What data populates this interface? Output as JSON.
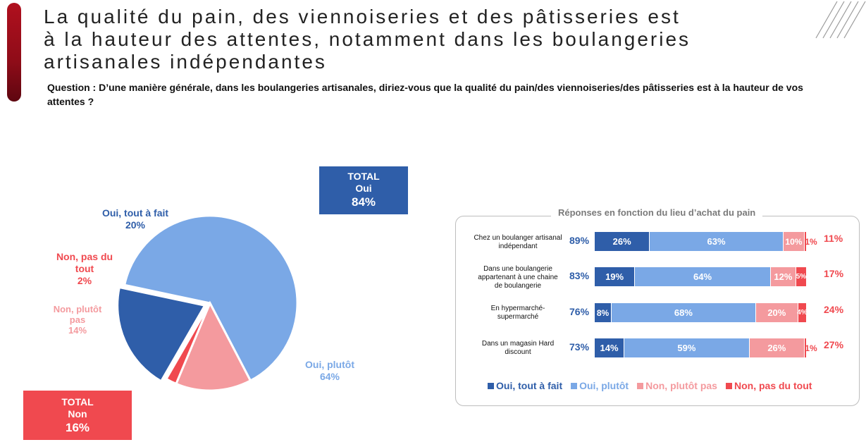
{
  "title_lines": [
    "La qualité du pain, des viennoiseries et des pâtisseries est",
    "à la hauteur des attentes, notamment dans les boulangeries",
    "artisanales indépendantes"
  ],
  "question": "Question : D’une manière générale, dans les boulangeries artisanales, diriez-vous que la qualité du pain/des viennoiseries/des pâtisseries est à la hauteur de vos attentes ?",
  "colors": {
    "oui_tout_a_fait": "#2f5ea9",
    "oui_plutot": "#7aa8e6",
    "non_plutot_pas": "#f49a9e",
    "non_pas_du_tout": "#f0494f"
  },
  "total_oui": {
    "line1": "TOTAL",
    "line2": "Oui",
    "value": "84%"
  },
  "total_non": {
    "line1": "TOTAL",
    "line2": "Non",
    "value": "16%"
  },
  "chart_data": [
    {
      "type": "pie",
      "slices": [
        {
          "name": "Oui, tout à fait",
          "value": 20,
          "label": "20%"
        },
        {
          "name": "Oui, plutôt",
          "value": 64,
          "label": "64%"
        },
        {
          "name": "Non, plutôt pas",
          "value": 14,
          "label": "14%"
        },
        {
          "name": "Non, pas du tout",
          "value": 2,
          "label": "2%"
        }
      ],
      "label_lines": [
        [
          "Oui, tout à fait",
          "20%"
        ],
        [
          "Oui, plutôt",
          "64%"
        ],
        [
          "Non, plutôt",
          "pas",
          "14%"
        ],
        [
          "Non, pas du",
          "tout",
          "2%"
        ]
      ]
    },
    {
      "type": "bar",
      "orientation": "horizontal",
      "stacked": true,
      "title": "Réponses en fonction du lieu d’achat du pain",
      "categories": [
        [
          "Chez un boulanger artisanal",
          "indépendant"
        ],
        [
          "Dans une boulangerie",
          "appartenant à une chaine",
          "de boulangerie"
        ],
        [
          "En hypermarché-",
          "supermarché"
        ],
        [
          "Dans un magasin Hard",
          "discount"
        ]
      ],
      "total_oui": [
        "89%",
        "83%",
        "76%",
        "73%"
      ],
      "total_non": [
        "11%",
        "17%",
        "24%",
        "27%"
      ],
      "series": [
        {
          "name": "Oui, tout à fait",
          "values": [
            26,
            19,
            8,
            14
          ]
        },
        {
          "name": "Oui, plutôt",
          "values": [
            63,
            64,
            68,
            59
          ]
        },
        {
          "name": "Non, plutôt pas",
          "values": [
            10,
            12,
            20,
            26
          ]
        },
        {
          "name": "Non, pas du tout",
          "values": [
            1,
            5,
            4,
            1
          ]
        }
      ],
      "legend_position": "bottom"
    }
  ]
}
